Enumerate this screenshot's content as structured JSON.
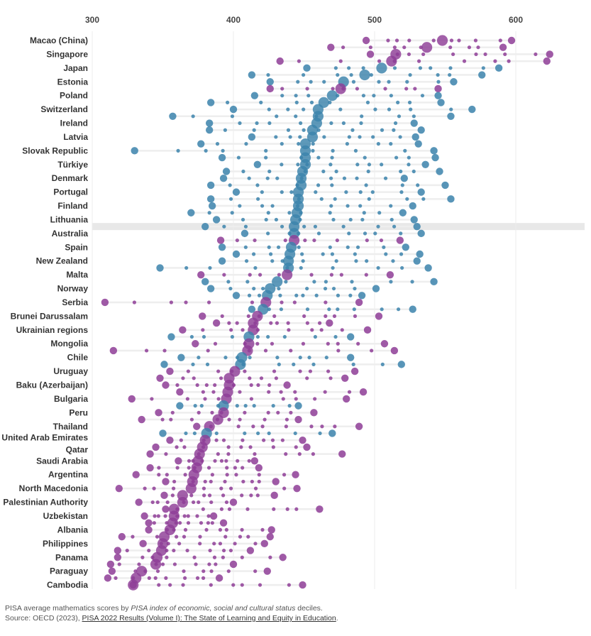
{
  "chart_data": {
    "type": "scatter",
    "variant": "dot-plot",
    "title": "",
    "xlabel": "",
    "ylabel": "",
    "xlim": [
      300,
      650
    ],
    "x_ticks": [
      300,
      400,
      500,
      600
    ],
    "x_axis_position": "top",
    "grid": true,
    "colors": {
      "purple": "#8e3d96",
      "blue": "#3b82ab",
      "highlight": "#e8e8e8"
    },
    "highlighted_row": 27,
    "rows": [
      {
        "label": "Macao (China)",
        "color": "purple",
        "min": 494,
        "marker": 548,
        "max": 597
      },
      {
        "label": "",
        "color": "purple",
        "min": 469,
        "marker": 537,
        "max": 591
      },
      {
        "label": "Singapore",
        "color": "purple",
        "min": 497,
        "marker": 515,
        "max": 624
      },
      {
        "label": "",
        "color": "purple",
        "min": 433,
        "marker": 512,
        "max": 622
      },
      {
        "label": "Japan",
        "color": "blue",
        "min": 452,
        "marker": 505,
        "max": 588
      },
      {
        "label": "",
        "color": "blue",
        "min": 413,
        "marker": 493,
        "max": 576
      },
      {
        "label": "Estonia",
        "color": "blue",
        "min": 426,
        "marker": 478,
        "max": 556
      },
      {
        "label": "",
        "color": "purple",
        "min": 426,
        "marker": 476,
        "max": 545
      },
      {
        "label": "Poland",
        "color": "blue",
        "min": 415,
        "marker": 470,
        "max": 545
      },
      {
        "label": "",
        "color": "blue",
        "min": 384,
        "marker": 464,
        "max": 547
      },
      {
        "label": "Switzerland",
        "color": "blue",
        "min": 400,
        "marker": 460,
        "max": 569
      },
      {
        "label": "",
        "color": "blue",
        "min": 357,
        "marker": 460,
        "max": 554
      },
      {
        "label": "Ireland",
        "color": "blue",
        "min": 383,
        "marker": 459,
        "max": 528
      },
      {
        "label": "",
        "color": "blue",
        "min": 383,
        "marker": 456,
        "max": 533
      },
      {
        "label": "Latvia",
        "color": "blue",
        "min": 413,
        "marker": 456,
        "max": 529
      },
      {
        "label": "",
        "color": "blue",
        "min": 377,
        "marker": 451,
        "max": 531
      },
      {
        "label": "Slovak Republic",
        "color": "blue",
        "min": 330,
        "marker": 451,
        "max": 542
      },
      {
        "label": "",
        "color": "blue",
        "min": 392,
        "marker": 451,
        "max": 543
      },
      {
        "label": "Türkiye",
        "color": "blue",
        "min": 417,
        "marker": 451,
        "max": 536
      },
      {
        "label": "",
        "color": "blue",
        "min": 395,
        "marker": 449,
        "max": 546
      },
      {
        "label": "Denmark",
        "color": "blue",
        "min": 393,
        "marker": 448,
        "max": 521
      },
      {
        "label": "",
        "color": "blue",
        "min": 384,
        "marker": 448,
        "max": 550
      },
      {
        "label": "Portugal",
        "color": "blue",
        "min": 402,
        "marker": 446,
        "max": 533
      },
      {
        "label": "",
        "color": "blue",
        "min": 384,
        "marker": 446,
        "max": 554
      },
      {
        "label": "Finland",
        "color": "blue",
        "min": 385,
        "marker": 446,
        "max": 527
      },
      {
        "label": "",
        "color": "blue",
        "min": 370,
        "marker": 445,
        "max": 520
      },
      {
        "label": "Lithuania",
        "color": "blue",
        "min": 388,
        "marker": 444,
        "max": 528
      },
      {
        "label": "",
        "color": "blue",
        "min": 380,
        "marker": 443,
        "max": 530
      },
      {
        "label": "Australia",
        "color": "blue",
        "min": 408,
        "marker": 443,
        "max": 533
      },
      {
        "label": "",
        "color": "purple",
        "min": 391,
        "marker": 443,
        "max": 518
      },
      {
        "label": "Spain",
        "color": "blue",
        "min": 392,
        "marker": 441,
        "max": 522
      },
      {
        "label": "",
        "color": "blue",
        "min": 402,
        "marker": 440,
        "max": 532
      },
      {
        "label": "New Zealand",
        "color": "blue",
        "min": 392,
        "marker": 439,
        "max": 530
      },
      {
        "label": "",
        "color": "blue",
        "min": 348,
        "marker": 439,
        "max": 538
      },
      {
        "label": "Malta",
        "color": "purple",
        "min": 377,
        "marker": 438,
        "max": 511
      },
      {
        "label": "",
        "color": "blue",
        "min": 380,
        "marker": 431,
        "max": 542
      },
      {
        "label": "Norway",
        "color": "blue",
        "min": 384,
        "marker": 426,
        "max": 501
      },
      {
        "label": "",
        "color": "blue",
        "min": 402,
        "marker": 424,
        "max": 491
      },
      {
        "label": "Serbia",
        "color": "purple",
        "min": 309,
        "marker": 423,
        "max": 489
      },
      {
        "label": "",
        "color": "blue",
        "min": 413,
        "marker": 421,
        "max": 527
      },
      {
        "label": "Brunei Darussalam",
        "color": "purple",
        "min": 378,
        "marker": 417,
        "max": 503
      },
      {
        "label": "",
        "color": "purple",
        "min": 388,
        "marker": 414,
        "max": 468
      },
      {
        "label": "Ukrainian regions",
        "color": "purple",
        "min": 364,
        "marker": 414,
        "max": 495
      },
      {
        "label": "",
        "color": "blue",
        "min": 356,
        "marker": 411,
        "max": 483
      },
      {
        "label": "Mongolia",
        "color": "purple",
        "min": 373,
        "marker": 411,
        "max": 507
      },
      {
        "label": "",
        "color": "purple",
        "min": 315,
        "marker": 410,
        "max": 514
      },
      {
        "label": "Chile",
        "color": "blue",
        "min": 363,
        "marker": 406,
        "max": 483
      },
      {
        "label": "",
        "color": "blue",
        "min": 351,
        "marker": 405,
        "max": 519
      },
      {
        "label": "Uruguay",
        "color": "purple",
        "min": 355,
        "marker": 401,
        "max": 486
      },
      {
        "label": "",
        "color": "purple",
        "min": 348,
        "marker": 397,
        "max": 479
      },
      {
        "label": "Baku (Azerbaijan)",
        "color": "purple",
        "min": 352,
        "marker": 397,
        "max": 438
      },
      {
        "label": "",
        "color": "purple",
        "min": 362,
        "marker": 396,
        "max": 492
      },
      {
        "label": "Bulgaria",
        "color": "purple",
        "min": 328,
        "marker": 395,
        "max": 480
      },
      {
        "label": "",
        "color": "blue",
        "min": 362,
        "marker": 393,
        "max": 446
      },
      {
        "label": "Peru",
        "color": "purple",
        "min": 347,
        "marker": 393,
        "max": 457
      },
      {
        "label": "",
        "color": "purple",
        "min": 335,
        "marker": 389,
        "max": 446
      },
      {
        "label": "Thailand",
        "color": "purple",
        "min": 374,
        "marker": 383,
        "max": 489
      },
      {
        "label": "",
        "color": "blue",
        "min": 350,
        "marker": 381,
        "max": 470
      },
      {
        "label": "United Arab Emirates",
        "color": "purple",
        "min": 355,
        "marker": 380,
        "max": 449
      },
      {
        "label": "Qatar",
        "color": "purple",
        "min": 345,
        "marker": 378,
        "max": 452
      },
      {
        "label": "",
        "color": "purple",
        "min": 341,
        "marker": 376,
        "max": 477
      },
      {
        "label": "Saudi Arabia",
        "color": "purple",
        "min": 361,
        "marker": 375,
        "max": 415
      },
      {
        "label": "",
        "color": "purple",
        "min": 341,
        "marker": 374,
        "max": 418
      },
      {
        "label": "Argentina",
        "color": "purple",
        "min": 331,
        "marker": 372,
        "max": 444
      },
      {
        "label": "",
        "color": "purple",
        "min": 352,
        "marker": 371,
        "max": 430
      },
      {
        "label": "North Macedonia",
        "color": "purple",
        "min": 319,
        "marker": 370,
        "max": 445
      },
      {
        "label": "",
        "color": "purple",
        "min": 351,
        "marker": 364,
        "max": 429
      },
      {
        "label": "Palestinian Authority",
        "color": "purple",
        "min": 333,
        "marker": 364,
        "max": 400
      },
      {
        "label": "",
        "color": "purple",
        "min": 352,
        "marker": 358,
        "max": 461
      },
      {
        "label": "Uzbekistan",
        "color": "purple",
        "min": 337,
        "marker": 358,
        "max": 386
      },
      {
        "label": "",
        "color": "purple",
        "min": 340,
        "marker": 357,
        "max": 393
      },
      {
        "label": "Albania",
        "color": "purple",
        "min": 340,
        "marker": 355,
        "max": 427
      },
      {
        "label": "",
        "color": "purple",
        "min": 321,
        "marker": 351,
        "max": 426
      },
      {
        "label": "Philippines",
        "color": "purple",
        "min": 336,
        "marker": 350,
        "max": 422
      },
      {
        "label": "",
        "color": "purple",
        "min": 318,
        "marker": 349,
        "max": 412
      },
      {
        "label": "Panama",
        "color": "purple",
        "min": 318,
        "marker": 346,
        "max": 435
      },
      {
        "label": "",
        "color": "purple",
        "min": 313,
        "marker": 345,
        "max": 400
      },
      {
        "label": "Paraguay",
        "color": "purple",
        "min": 314,
        "marker": 335,
        "max": 424
      },
      {
        "label": "",
        "color": "purple",
        "min": 311,
        "marker": 331,
        "max": 390
      },
      {
        "label": "Cambodia",
        "color": "purple",
        "min": 329,
        "marker": 329,
        "max": 449
      }
    ]
  },
  "footer": {
    "note_prefix": "PISA average mathematics scores by ",
    "note_italic": "PISA index of economic, social and cultural status",
    "note_suffix": " deciles.",
    "source_prefix": "Source: OECD (2023), ",
    "source_link": "PISA 2022 Results (Volume I): The State of Learning and Equity in Education",
    "source_suffix": "."
  }
}
